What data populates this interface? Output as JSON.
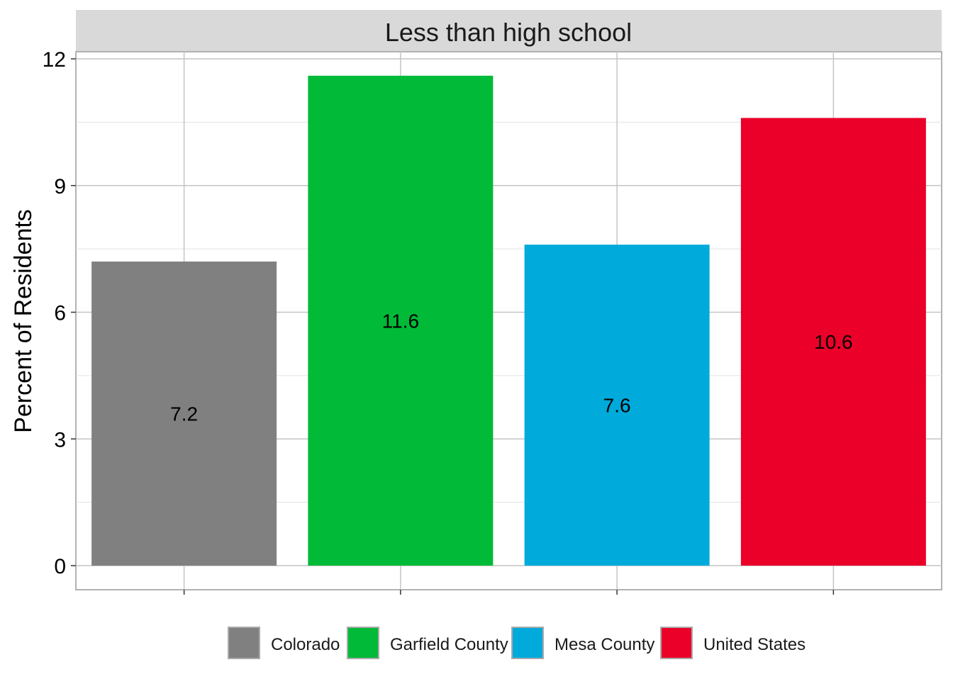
{
  "chart_data": {
    "type": "bar",
    "title": "Less than high school",
    "xlabel": "",
    "ylabel": "Percent of Residents",
    "ylim": [
      -1.9,
      12.2
    ],
    "yticks": [
      0,
      3,
      6,
      9,
      12
    ],
    "grid": true,
    "categories": [
      "Colorado",
      "Garfield County",
      "Mesa County",
      "United States"
    ],
    "values": [
      7.2,
      11.6,
      7.6,
      10.6
    ],
    "value_labels": [
      "7.2",
      "11.6",
      "7.6",
      "10.6"
    ],
    "colors": [
      "#808080",
      "#00BA38",
      "#00AADB",
      "#EA0029"
    ],
    "legend": {
      "placement": "bottom",
      "entries": [
        "Colorado",
        "Garfield County",
        "Mesa County",
        "United States"
      ]
    }
  }
}
